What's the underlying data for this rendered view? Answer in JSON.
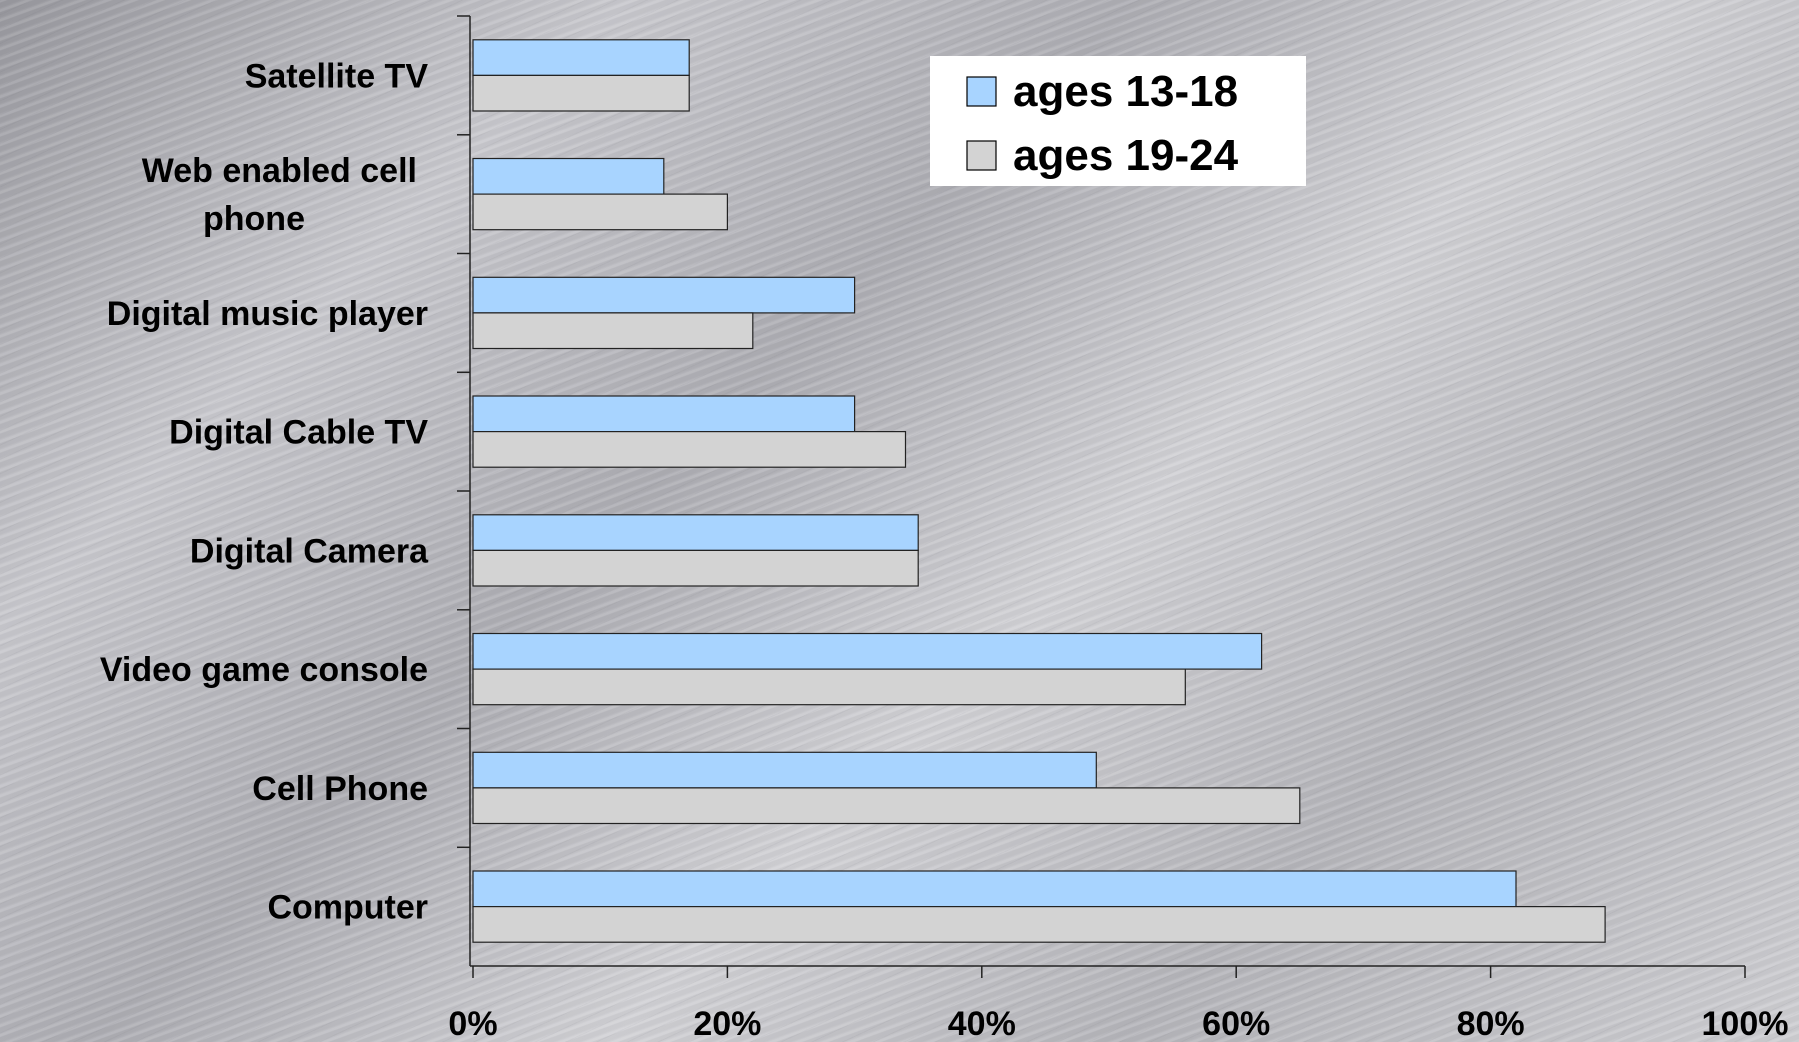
{
  "chart_data": {
    "type": "bar",
    "orientation": "horizontal",
    "categories": [
      [
        "Satellite TV"
      ],
      [
        "Web enabled cell",
        "phone"
      ],
      [
        "Digital music player"
      ],
      [
        "Digital Cable TV"
      ],
      [
        "Digital Camera"
      ],
      [
        "Video game console"
      ],
      [
        "Cell Phone"
      ],
      [
        "Computer"
      ]
    ],
    "series": [
      {
        "name": "ages 13-18",
        "color": "#a8d4ff",
        "values": [
          17,
          15,
          30,
          30,
          35,
          62,
          49,
          82
        ]
      },
      {
        "name": "ages 19-24",
        "color": "#d3d3d3",
        "values": [
          17,
          20,
          22,
          34,
          35,
          56,
          65,
          89
        ]
      }
    ],
    "xlim": [
      0,
      100
    ],
    "xticks": [
      "0%",
      "20%",
      "40%",
      "60%",
      "80%",
      "100%"
    ],
    "grid": false,
    "legend_position": "top-right"
  }
}
